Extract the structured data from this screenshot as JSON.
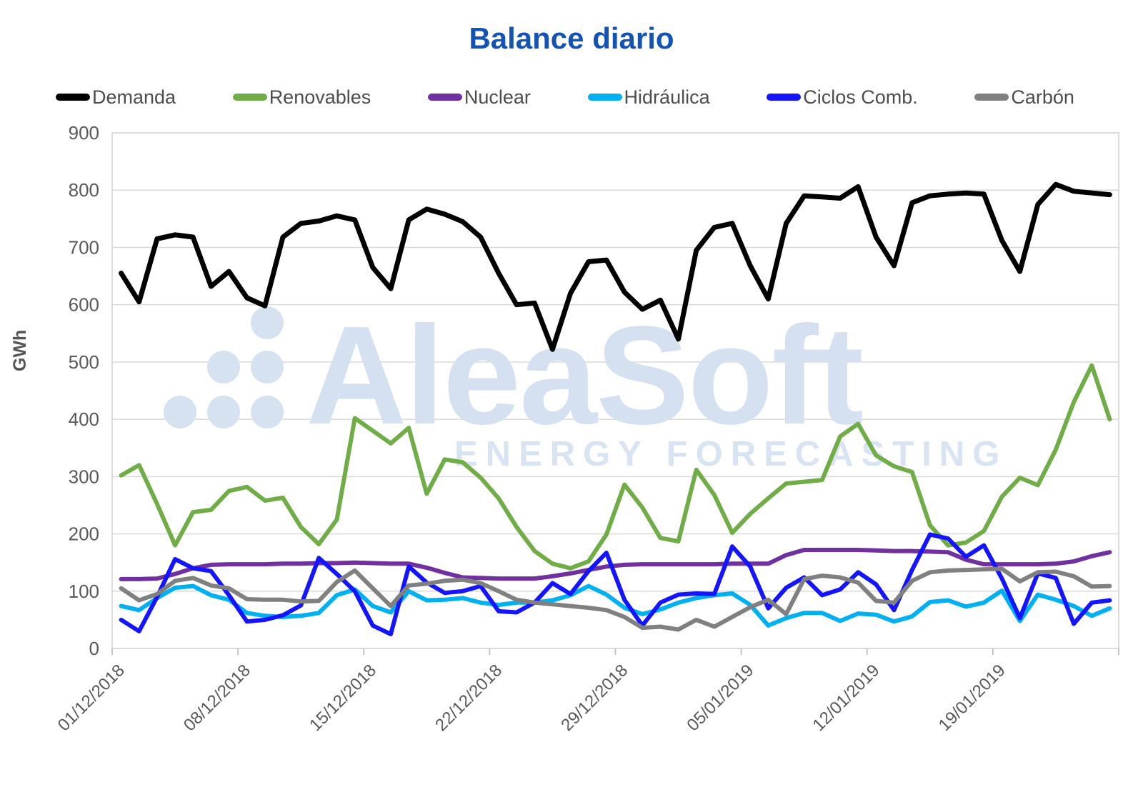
{
  "title": "Balance diario",
  "y_axis_title": "GWh",
  "watermark": {
    "brand": "AleaSoft",
    "subtitle": "ENERGY FORECASTING"
  },
  "colors": {
    "title": "#1353b5",
    "axis_text": "#595959",
    "grid_line": "#d9d9d9",
    "axis_line": "#bfbfbf",
    "plot_border": "#d9d9d9",
    "watermark": "#d7e2f1"
  },
  "chart_data": {
    "type": "line",
    "title": "Balance diario",
    "xlabel": "",
    "ylabel": "GWh",
    "ylim": [
      0,
      900
    ],
    "y_step": 100,
    "grid": true,
    "legend_position": "top",
    "x_tick_interval": 7,
    "x_tick_labels": [
      "01/12/2018",
      "08/12/2018",
      "15/12/2018",
      "22/12/2018",
      "29/12/2018",
      "05/01/2019",
      "12/01/2019",
      "19/01/2019"
    ],
    "categories": [
      "01/12/2018",
      "02/12/2018",
      "03/12/2018",
      "04/12/2018",
      "05/12/2018",
      "06/12/2018",
      "07/12/2018",
      "08/12/2018",
      "09/12/2018",
      "10/12/2018",
      "11/12/2018",
      "12/12/2018",
      "13/12/2018",
      "14/12/2018",
      "15/12/2018",
      "16/12/2018",
      "17/12/2018",
      "18/12/2018",
      "19/12/2018",
      "20/12/2018",
      "21/12/2018",
      "22/12/2018",
      "23/12/2018",
      "24/12/2018",
      "25/12/2018",
      "26/12/2018",
      "27/12/2018",
      "28/12/2018",
      "29/12/2018",
      "30/12/2018",
      "31/12/2018",
      "01/01/2019",
      "02/01/2019",
      "03/01/2019",
      "04/01/2019",
      "05/01/2019",
      "06/01/2019",
      "07/01/2019",
      "08/01/2019",
      "09/01/2019",
      "10/01/2019",
      "11/01/2019",
      "12/01/2019",
      "13/01/2019",
      "14/01/2019",
      "15/01/2019",
      "16/01/2019",
      "17/01/2019",
      "18/01/2019",
      "19/01/2019",
      "20/01/2019",
      "21/01/2019",
      "22/01/2019",
      "23/01/2019",
      "24/01/2019",
      "25/01/2019"
    ],
    "series": [
      {
        "name": "Demanda",
        "color": "#000000",
        "stroke_width": 7,
        "values": [
          655,
          605,
          715,
          722,
          718,
          632,
          658,
          612,
          598,
          718,
          742,
          746,
          755,
          748,
          665,
          628,
          748,
          767,
          758,
          745,
          718,
          655,
          600,
          603,
          522,
          620,
          675,
          678,
          622,
          592,
          608,
          540,
          695,
          735,
          742,
          668,
          610,
          742,
          790,
          788,
          786,
          806,
          718,
          668,
          778,
          790,
          793,
          795,
          793,
          712,
          658,
          775,
          810,
          798,
          795,
          792
        ]
      },
      {
        "name": "Renovables",
        "color": "#70ad47",
        "stroke_width": 6,
        "values": [
          302,
          320,
          252,
          180,
          238,
          242,
          275,
          282,
          258,
          263,
          212,
          182,
          225,
          402,
          380,
          358,
          385,
          270,
          330,
          325,
          298,
          262,
          212,
          170,
          148,
          140,
          152,
          199,
          286,
          246,
          193,
          187,
          312,
          268,
          202,
          235,
          262,
          288,
          291,
          294,
          370,
          392,
          337,
          318,
          308,
          215,
          180,
          185,
          205,
          265,
          298,
          285,
          347,
          430,
          494,
          400
        ]
      },
      {
        "name": "Nuclear",
        "color": "#7030a0",
        "stroke_width": 6,
        "values": [
          121,
          121,
          122,
          130,
          140,
          146,
          147,
          147,
          147,
          148,
          148,
          149,
          149,
          150,
          149,
          148,
          148,
          141,
          132,
          124,
          123,
          122,
          122,
          122,
          126,
          131,
          137,
          143,
          146,
          147,
          147,
          147,
          147,
          147,
          148,
          148,
          148,
          163,
          172,
          172,
          172,
          172,
          171,
          170,
          170,
          169,
          168,
          155,
          147,
          147,
          147,
          147,
          148,
          152,
          161,
          168
        ]
      },
      {
        "name": "Hidráulica",
        "color": "#00b0f0",
        "stroke_width": 6,
        "values": [
          74,
          67,
          88,
          106,
          109,
          93,
          85,
          62,
          57,
          55,
          57,
          62,
          93,
          103,
          74,
          63,
          100,
          84,
          85,
          88,
          80,
          76,
          80,
          80,
          84,
          93,
          109,
          94,
          71,
          60,
          68,
          80,
          88,
          93,
          96,
          76,
          40,
          53,
          62,
          62,
          48,
          61,
          59,
          47,
          56,
          81,
          84,
          73,
          80,
          101,
          48,
          94,
          85,
          74,
          57,
          70
        ]
      },
      {
        "name": "Ciclos Comb.",
        "color": "#1414ff",
        "stroke_width": 6,
        "values": [
          50,
          30,
          90,
          156,
          140,
          135,
          93,
          47,
          50,
          58,
          75,
          158,
          130,
          100,
          40,
          25,
          143,
          115,
          97,
          100,
          109,
          65,
          63,
          80,
          114,
          95,
          135,
          167,
          85,
          40,
          80,
          94,
          96,
          95,
          178,
          143,
          70,
          106,
          124,
          93,
          103,
          133,
          112,
          67,
          137,
          199,
          192,
          160,
          180,
          122,
          53,
          131,
          123,
          43,
          80,
          84
        ]
      },
      {
        "name": "Carbón",
        "color": "#808080",
        "stroke_width": 6,
        "values": [
          105,
          84,
          95,
          118,
          123,
          110,
          105,
          86,
          85,
          85,
          82,
          83,
          116,
          136,
          105,
          74,
          110,
          113,
          118,
          120,
          114,
          100,
          85,
          80,
          77,
          74,
          71,
          67,
          55,
          36,
          38,
          33,
          50,
          38,
          55,
          72,
          85,
          60,
          121,
          127,
          124,
          115,
          83,
          80,
          118,
          133,
          136,
          137,
          138,
          139,
          117,
          133,
          134,
          126,
          108,
          109
        ]
      }
    ]
  }
}
